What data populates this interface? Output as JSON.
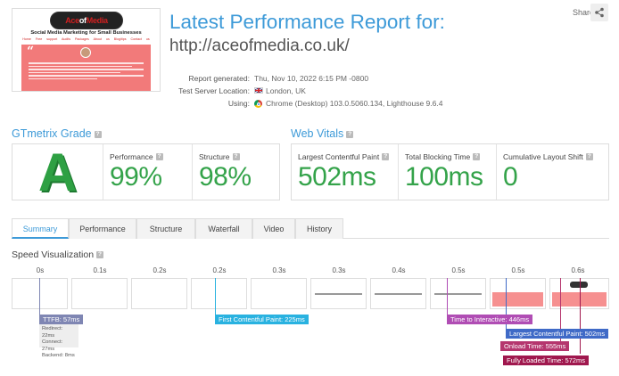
{
  "header": {
    "title": "Latest Performance Report for:",
    "url": "http://aceofmedia.co.uk/",
    "share_label": "Share"
  },
  "thumbnail": {
    "logo_text": "AceofMedia",
    "tagline": "Social Media Marketing for Small Businesses",
    "nav": "Home  Free support  Audits  Packages  About us  Blog/tips  Contact us"
  },
  "meta": {
    "generated_label": "Report generated:",
    "generated_value": "Thu, Nov 10, 2022 6:15 PM -0800",
    "location_label": "Test Server Location:",
    "location_value": "London, UK",
    "using_label": "Using:",
    "using_value": "Chrome (Desktop) 103.0.5060.134, Lighthouse 9.6.4"
  },
  "grade": {
    "heading": "GTmetrix Grade",
    "letter": "A",
    "performance_label": "Performance",
    "performance_value": "99%",
    "structure_label": "Structure",
    "structure_value": "98%"
  },
  "vitals": {
    "heading": "Web Vitals",
    "lcp_label": "Largest Contentful Paint",
    "lcp_value": "502ms",
    "tbt_label": "Total Blocking Time",
    "tbt_value": "100ms",
    "cls_label": "Cumulative Layout Shift",
    "cls_value": "0"
  },
  "tabs": [
    "Summary",
    "Performance",
    "Structure",
    "Waterfall",
    "Video",
    "History"
  ],
  "speed": {
    "heading": "Speed Visualization",
    "ticks": [
      "0s",
      "0.1s",
      "0.2s",
      "0.2s",
      "0.3s",
      "0.3s",
      "0.4s",
      "0.5s",
      "0.5s",
      "0.6s"
    ],
    "markers": {
      "ttfb": "TTFB: 57ms",
      "ttfb_redirect": "Redirect: 22ms",
      "ttfb_connect": "Connect: 27ms",
      "ttfb_backend": "Backend: 8ms",
      "fcp": "First Contentful Paint: 225ms",
      "tti": "Time to Interactive: 446ms",
      "lcp": "Largest Contentful Paint: 502ms",
      "onload": "Onload Time: 555ms",
      "fully": "Fully Loaded Time: 572ms"
    }
  },
  "colors": {
    "accent": "#3d9ad8",
    "good": "#34a34a",
    "ttfb": "#7f86b3",
    "fcp": "#29b2e0",
    "tti": "#b04db4",
    "lcp": "#3f6ac7",
    "onload": "#b5366e",
    "fully": "#a0184e"
  }
}
